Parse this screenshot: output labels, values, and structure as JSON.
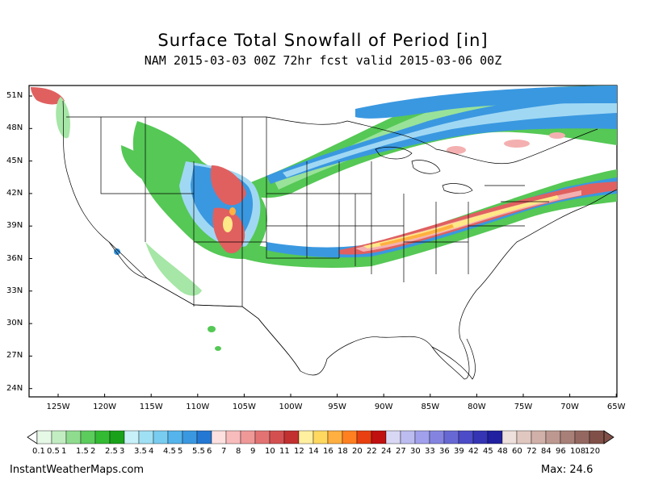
{
  "header": {
    "title": "Surface Total Snowfall of Period [in]",
    "subtitle": "NAM 2015-03-03 00Z 72hr fcst valid 2015-03-06 00Z"
  },
  "axes": {
    "lat_labels": [
      "51N",
      "48N",
      "45N",
      "42N",
      "39N",
      "36N",
      "33N",
      "30N",
      "27N",
      "24N"
    ],
    "lon_labels": [
      "125W",
      "120W",
      "115W",
      "110W",
      "105W",
      "100W",
      "95W",
      "90W",
      "85W",
      "80W",
      "75W",
      "70W",
      "65W"
    ]
  },
  "colorbar": {
    "labels": [
      "0.1",
      "0.5",
      "1",
      "1.5",
      "2",
      "2.5",
      "3",
      "3.5",
      "4",
      "4.5",
      "5",
      "5.5",
      "6",
      "7",
      "8",
      "9",
      "10",
      "11",
      "12",
      "14",
      "16",
      "18",
      "20",
      "22",
      "24",
      "27",
      "30",
      "33",
      "36",
      "39",
      "42",
      "45",
      "48",
      "60",
      "72",
      "84",
      "96",
      "108",
      "120"
    ],
    "colors": [
      "#e6f8e6",
      "#c2edc2",
      "#8fdc8f",
      "#5ccc5c",
      "#33bb33",
      "#1aa11a",
      "#c8f0f8",
      "#a0e0f4",
      "#78ccf0",
      "#55b4ec",
      "#3a98e0",
      "#2478d4",
      "#fde0e0",
      "#f8bcbc",
      "#ef9898",
      "#e37373",
      "#d45050",
      "#c23030",
      "#fff0a0",
      "#ffd860",
      "#ffb040",
      "#ff8020",
      "#e84010",
      "#c01010",
      "#d8d8f4",
      "#bcbcf0",
      "#a0a0ec",
      "#8484e0",
      "#6868d4",
      "#4c4cc8",
      "#3434b4",
      "#2020a0",
      "#eee0dc",
      "#e0c8c0",
      "#d0b0a8",
      "#bc9890",
      "#a88078",
      "#946860",
      "#805048"
    ]
  },
  "map": {
    "bands": {
      "green": "#55c855",
      "light_green": "#a6e6a6",
      "blue": "#3a98e0",
      "light_blue": "#a0d8f4",
      "red": "#e06060",
      "pink": "#f4b0b0",
      "yellow": "#ffe888",
      "orange": "#ffb040"
    }
  },
  "footer": {
    "site": "InstantWeatherMaps.com",
    "max_label": "Max:  24.6"
  }
}
